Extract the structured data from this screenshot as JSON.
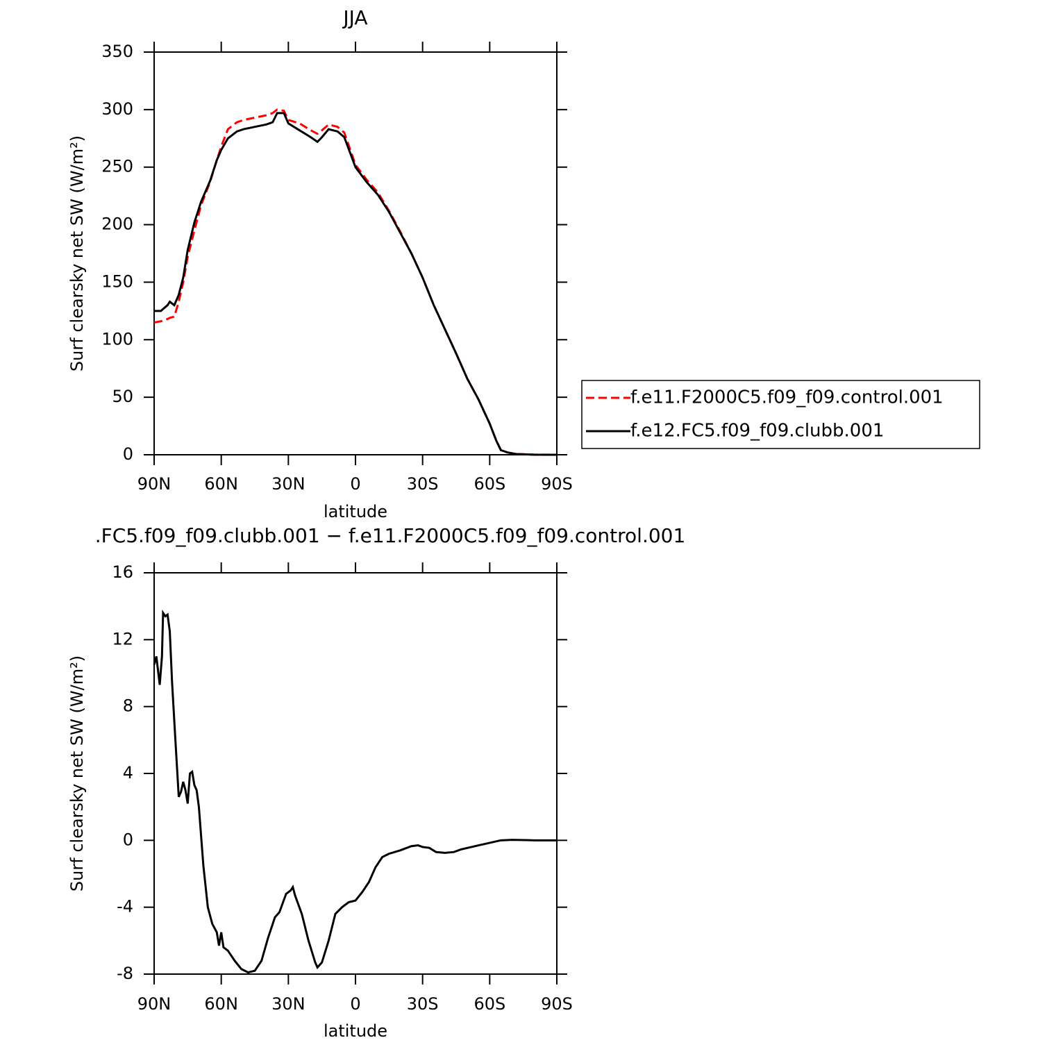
{
  "chart_data": [
    {
      "type": "line",
      "title": "JJA",
      "xlabel": "latitude",
      "ylabel": "Surf clearsky net SW (W/m²)",
      "x": [
        90,
        87,
        84,
        83,
        81,
        79,
        77,
        75,
        72,
        69,
        65,
        62,
        60,
        57,
        53,
        50,
        45,
        40,
        37,
        35,
        32,
        30,
        25,
        20,
        17,
        15,
        12,
        8,
        5,
        0,
        -5,
        -10,
        -15,
        -20,
        -25,
        -30,
        -35,
        -40,
        -45,
        -50,
        -55,
        -60,
        -63,
        -65,
        -68,
        -72,
        -80,
        -90
      ],
      "series": [
        {
          "name": "f.e11.F2000C5.f09_f09.control.001",
          "color": "#ff0000",
          "dashed": true,
          "values": [
            115,
            116,
            118,
            119,
            120,
            133,
            150,
            172,
            195,
            217,
            237,
            256,
            268,
            283,
            289,
            291,
            293,
            295,
            297,
            300,
            299,
            291,
            288,
            282,
            279,
            282,
            287,
            285,
            280,
            252,
            239,
            228,
            212,
            194,
            175,
            154,
            130,
            109,
            88,
            66,
            48,
            27,
            12,
            4,
            2,
            0.6,
            0.1,
            0
          ]
        },
        {
          "name": "f.e12.FC5.f09_f09.clubb.001",
          "color": "#000000",
          "dashed": false,
          "values": [
            125,
            125,
            130,
            133,
            130,
            139,
            154,
            178,
            202,
            220,
            238,
            256,
            265,
            275,
            281,
            283,
            285,
            287,
            289,
            297,
            297,
            288,
            282,
            276,
            272,
            276,
            283,
            281,
            276,
            250,
            237,
            226,
            211,
            193,
            175,
            154,
            130,
            109,
            88,
            66,
            48,
            27,
            12,
            4,
            2,
            0.6,
            0.1,
            0
          ]
        }
      ],
      "xlim": [
        90,
        -90
      ],
      "xticks": [
        {
          "value": 90,
          "label": "90N"
        },
        {
          "value": 60,
          "label": "60N"
        },
        {
          "value": 30,
          "label": "30N"
        },
        0,
        {
          "value": -30,
          "label": "30S"
        },
        {
          "value": -60,
          "label": "60S"
        },
        {
          "value": -90,
          "label": "90S"
        }
      ],
      "ylim": [
        0,
        350
      ],
      "yticks": [
        0,
        50,
        100,
        150,
        200,
        250,
        300,
        350
      ],
      "legend": "right"
    },
    {
      "type": "line",
      "title": ".FC5.f09_f09.clubb.001 − f.e11.F2000C5.f09_f09.control.001",
      "xlabel": "latitude",
      "ylabel": "Surf clearsky net SW (W/m²)",
      "x": [
        90,
        89,
        87.5,
        86.5,
        86,
        85,
        84,
        83,
        82,
        80.5,
        79,
        78,
        77,
        76,
        75,
        74,
        73,
        72,
        71,
        70,
        68,
        66,
        64,
        62,
        61,
        60,
        59,
        57,
        54,
        51,
        48,
        45,
        42,
        39,
        36,
        34,
        31,
        29,
        28,
        27,
        24,
        21,
        18,
        17,
        15,
        12,
        9,
        6,
        3,
        0,
        -3,
        -6,
        -9,
        -12,
        -15,
        -20,
        -25,
        -28,
        -30,
        -33,
        -36,
        -40,
        -44,
        -47,
        -55,
        -60,
        -65,
        -70,
        -80,
        -90
      ],
      "series": [
        {
          "color": "#000000",
          "dashed": false,
          "values": [
            10.5,
            11,
            9.3,
            11,
            13.6,
            13.4,
            13.5,
            12.5,
            9.5,
            6,
            2.6,
            2.9,
            3.5,
            3,
            2.2,
            4,
            4.1,
            3.3,
            3,
            2,
            -1.5,
            -4,
            -5,
            -5.5,
            -6.3,
            -5.5,
            -6.4,
            -6.6,
            -7.2,
            -7.7,
            -7.9,
            -7.8,
            -7.2,
            -5.8,
            -4.6,
            -4.3,
            -3.2,
            -3,
            -2.8,
            -3.3,
            -4.4,
            -6,
            -7.3,
            -7.6,
            -7.3,
            -6,
            -4.4,
            -4,
            -3.7,
            -3.6,
            -3.1,
            -2.5,
            -1.6,
            -1,
            -0.8,
            -0.6,
            -0.35,
            -0.3,
            -0.4,
            -0.45,
            -0.7,
            -0.75,
            -0.7,
            -0.55,
            -0.3,
            -0.15,
            0,
            0.03,
            0,
            0
          ]
        }
      ],
      "xlim": [
        90,
        -90
      ],
      "xticks": [
        {
          "value": 90,
          "label": "90N"
        },
        {
          "value": 60,
          "label": "60N"
        },
        {
          "value": 30,
          "label": "30N"
        },
        0,
        {
          "value": -30,
          "label": "30S"
        },
        {
          "value": -60,
          "label": "60S"
        },
        {
          "value": -90,
          "label": "90S"
        }
      ],
      "ylim": [
        -8,
        16
      ],
      "yticks": [
        -8,
        -4,
        0,
        4,
        8,
        12,
        16
      ]
    }
  ]
}
